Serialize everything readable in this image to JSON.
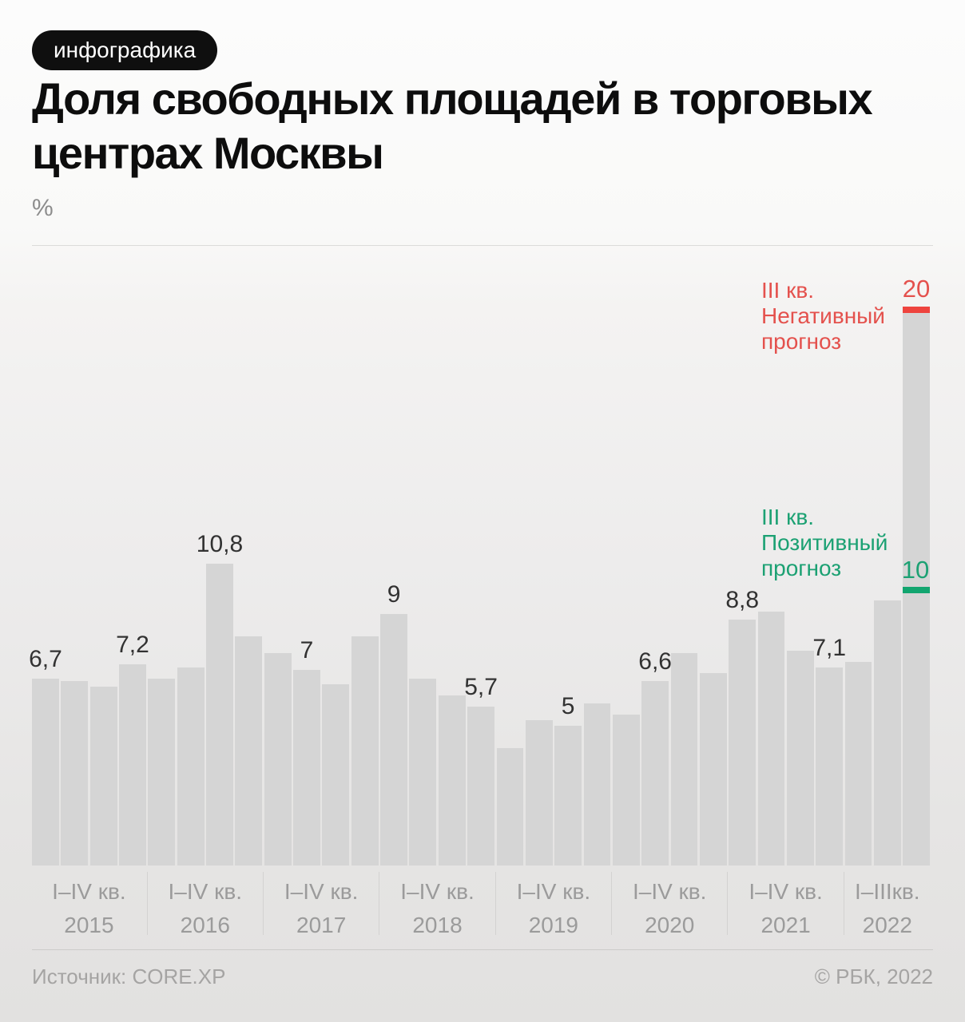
{
  "header": {
    "badge": "инфографика",
    "title": "Доля свободных площадей в торговых центрах Москвы"
  },
  "unit": "%",
  "chart_data": {
    "type": "bar",
    "title": "Доля свободных площадей в торговых центрах Москвы",
    "xlabel": "",
    "ylabel": "%",
    "ylim": [
      0,
      20
    ],
    "grid": false,
    "legend_position": "none",
    "bar_color": "#d5d5d5",
    "value_label_color": "#323232",
    "groups": [
      {
        "quarters": "I–IV кв.",
        "year": "2015",
        "values": [
          6.7,
          6.6,
          6.4,
          7.2
        ],
        "labels": [
          "6,7",
          null,
          null,
          "7,2"
        ]
      },
      {
        "quarters": "I–IV кв.",
        "year": "2016",
        "values": [
          6.7,
          7.1,
          10.8,
          8.2
        ],
        "labels": [
          null,
          null,
          "10,8",
          null
        ]
      },
      {
        "quarters": "I–IV кв.",
        "year": "2017",
        "values": [
          7.6,
          7.0,
          6.5,
          8.2
        ],
        "labels": [
          null,
          "7",
          null,
          null
        ]
      },
      {
        "quarters": "I–IV кв.",
        "year": "2018",
        "values": [
          9.0,
          6.7,
          6.1,
          5.7
        ],
        "labels": [
          "9",
          null,
          null,
          "5,7"
        ]
      },
      {
        "quarters": "I–IV кв.",
        "year": "2019",
        "values": [
          4.2,
          5.2,
          5.0,
          5.8
        ],
        "labels": [
          null,
          null,
          "5",
          null
        ]
      },
      {
        "quarters": "I–IV кв.",
        "year": "2020",
        "values": [
          5.4,
          6.6,
          7.6,
          6.9
        ],
        "labels": [
          null,
          "6,6",
          null,
          null
        ]
      },
      {
        "quarters": "I–IV кв.",
        "year": "2021",
        "values": [
          8.8,
          9.1,
          7.7,
          7.1
        ],
        "labels": [
          "8,8",
          null,
          null,
          "7,1"
        ]
      },
      {
        "quarters": "I–IIIкв.",
        "year": "2022",
        "values": [
          7.3,
          9.5,
          20
        ],
        "labels": [
          null,
          null,
          null
        ],
        "forecast_index": 2
      }
    ],
    "forecast": {
      "negative": {
        "value": 20,
        "value_label": "20",
        "annotation": "III кв.\nНегативный\nпрогноз",
        "color": "#e4514d",
        "cap_color": "#ee443e"
      },
      "positive": {
        "value": 10,
        "value_label": "10",
        "annotation": "III кв.\nПозитивный\nпрогноз",
        "color": "#1ca173",
        "cap_color": "#12a56f"
      }
    }
  },
  "footer": {
    "source": "Источник: CORE.XP",
    "copyright": "© РБК, 2022"
  }
}
